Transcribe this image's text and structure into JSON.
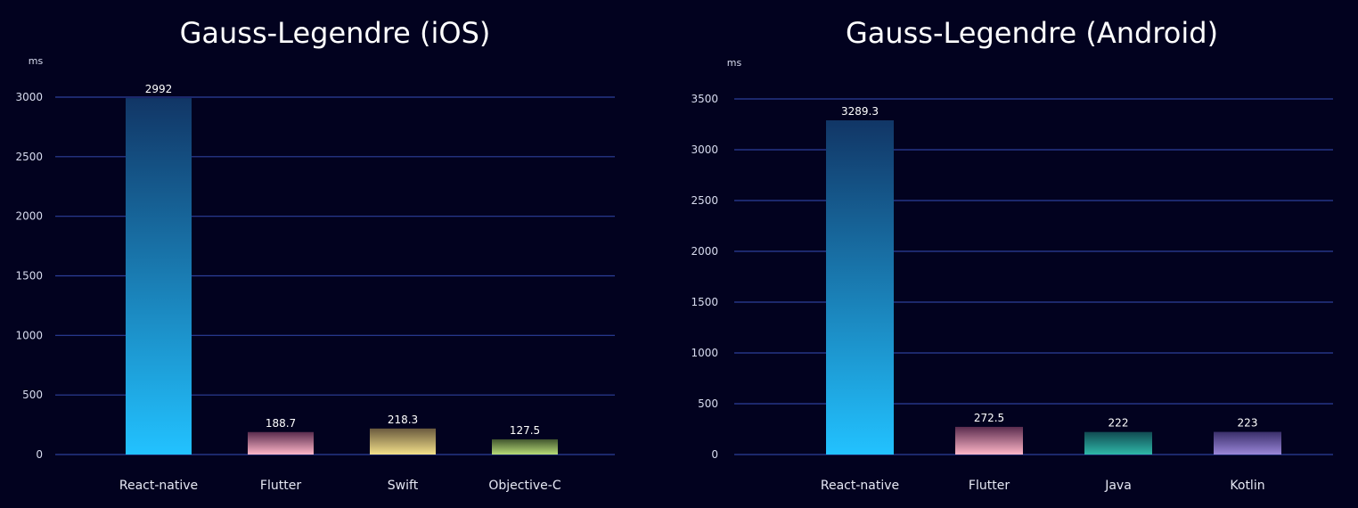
{
  "gradients": {
    "React-native": [
      "#22c2ff",
      "#113666"
    ],
    "Flutter": [
      "#ffb6c8",
      "#5a2c4e"
    ],
    "Swift": [
      "#f3e08a",
      "#6a5a3e"
    ],
    "Objective-C": [
      "#b8dc78",
      "#41552e"
    ],
    "Java": [
      "#2fb8a8",
      "#114a52"
    ],
    "Kotlin": [
      "#9a86d8",
      "#3a2f6a"
    ]
  },
  "colors": {
    "background": "#02021f",
    "gridline": "#2c3f9a"
  },
  "chart_data": [
    {
      "type": "bar",
      "title": "Gauss-Legendre (iOS)",
      "ylabel": "ms",
      "xlabel": "",
      "categories": [
        "React-native",
        "Flutter",
        "Swift",
        "Objective-C"
      ],
      "values": [
        2992,
        188.7,
        218.3,
        127.5
      ],
      "value_labels": [
        "2992",
        "188.7",
        "218.3",
        "127.5"
      ],
      "ylim": [
        0,
        3000
      ],
      "yticks": [
        0,
        500,
        1000,
        1500,
        2000,
        2500,
        3000
      ],
      "grid": true,
      "legend": "none"
    },
    {
      "type": "bar",
      "title": "Gauss-Legendre (Android)",
      "ylabel": "ms",
      "xlabel": "",
      "categories": [
        "React-native",
        "Flutter",
        "Java",
        "Kotlin"
      ],
      "values": [
        3289.3,
        272.5,
        222,
        223
      ],
      "value_labels": [
        "3289.3",
        "272.5",
        "222",
        "223"
      ],
      "ylim": [
        0,
        3500
      ],
      "yticks": [
        0,
        500,
        1000,
        1500,
        2000,
        2500,
        3000,
        3500
      ],
      "grid": true,
      "legend": "none"
    }
  ]
}
